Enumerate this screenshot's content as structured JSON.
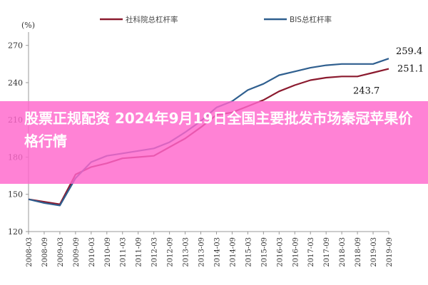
{
  "banner": {
    "text": "股票正规配资 2024年9月19日全国主要批发市场秦冠苹果价格行情",
    "color": "#ff66cc"
  },
  "chart_data": {
    "type": "line",
    "unit_label": "(%)",
    "ylim": [
      120,
      275
    ],
    "yticks": [
      120,
      150,
      180,
      210,
      240,
      270
    ],
    "x": [
      "2008-03",
      "2008-09",
      "2009-03",
      "2009-09",
      "2010-03",
      "2010-09",
      "2011-03",
      "2011-09",
      "2012-03",
      "2012-09",
      "2013-03",
      "2013-09",
      "2014-03",
      "2014-09",
      "2015-03",
      "2015-09",
      "2016-03",
      "2016-09",
      "2017-03",
      "2017-09",
      "2018-03",
      "2018-09",
      "2019-03",
      "2019-09"
    ],
    "grid": false,
    "legend_position": "top",
    "series": [
      {
        "name": "社科院总杠杆率",
        "color": "#8b1a2e",
        "values": [
          146,
          144,
          142,
          166,
          172,
          175,
          179,
          180,
          181,
          188,
          195,
          204,
          214,
          216,
          221,
          226,
          233,
          238,
          242,
          244,
          245,
          245,
          248,
          251.1
        ]
      },
      {
        "name": "BIS总杠杆率",
        "color": "#2f5f8f",
        "values": [
          146,
          143,
          141,
          163,
          176,
          181,
          183,
          185,
          187,
          192,
          200,
          209,
          220,
          225,
          234,
          239,
          246,
          249,
          252,
          254,
          255,
          255,
          255,
          259.4
        ]
      }
    ],
    "annotations": [
      {
        "text": "259.4",
        "series": "BIS总杠杆率",
        "x": "2019-09"
      },
      {
        "text": "251.1",
        "series": "社科院总杠杆率",
        "x": "2019-09"
      },
      {
        "text": "243.7",
        "x": "2019-03"
      }
    ]
  }
}
